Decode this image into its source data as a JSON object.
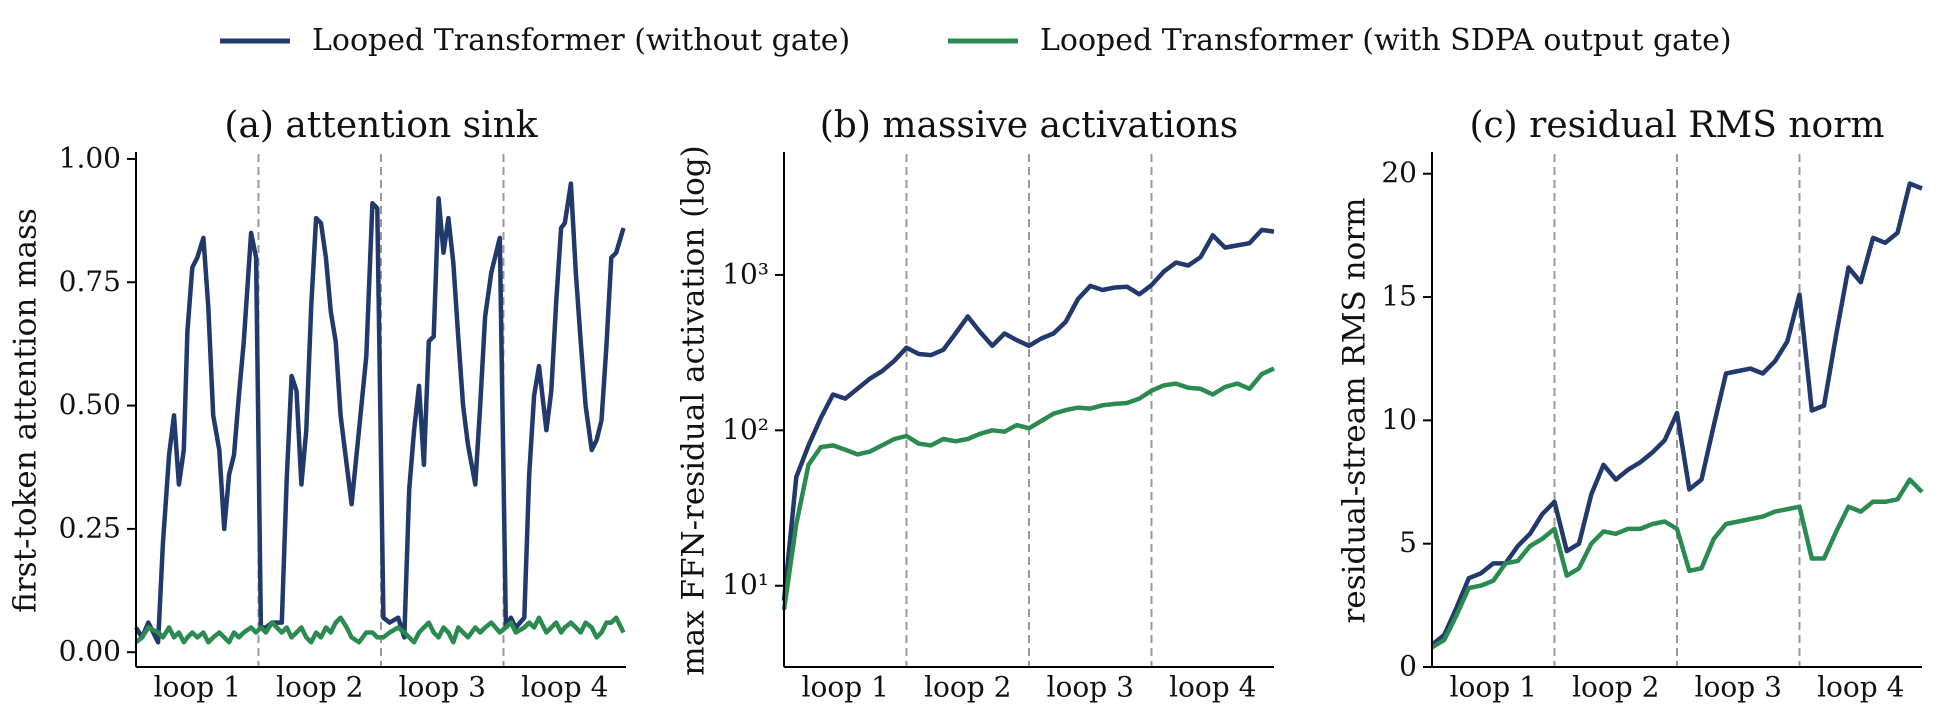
{
  "chart_data": [
    {
      "type": "line",
      "title": "(a) attention sink",
      "y_label": "first-token attention mass",
      "xlim": [
        0,
        4
      ],
      "xticks": [
        {
          "value": 0.5,
          "label": "loop 1"
        },
        {
          "value": 1.5,
          "label": "loop 2"
        },
        {
          "value": 2.5,
          "label": "loop 3"
        },
        {
          "value": 3.5,
          "label": "loop 4"
        }
      ],
      "loop_boundaries": [
        1,
        2,
        3
      ],
      "ylim": [
        -0.03,
        1.01
      ],
      "yticks": [
        {
          "value": 0,
          "label": "0.00"
        },
        {
          "value": 0.25,
          "label": "0.25"
        },
        {
          "value": 0.5,
          "label": "0.50"
        },
        {
          "value": 0.75,
          "label": "0.75"
        },
        {
          "value": 1,
          "label": "1.00"
        }
      ],
      "x": [
        0,
        0.05,
        0.1,
        0.18,
        0.22,
        0.27,
        0.31,
        0.35,
        0.39,
        0.42,
        0.46,
        0.5,
        0.55,
        0.59,
        0.63,
        0.68,
        0.72,
        0.76,
        0.8,
        0.84,
        0.88,
        0.94,
        0.98,
        1.02,
        1.06,
        1.11,
        1.19,
        1.23,
        1.27,
        1.31,
        1.35,
        1.39,
        1.43,
        1.47,
        1.51,
        1.55,
        1.59,
        1.63,
        1.67,
        1.72,
        1.76,
        1.82,
        1.88,
        1.93,
        1.97,
        2.02,
        2.07,
        2.14,
        2.19,
        2.23,
        2.27,
        2.31,
        2.35,
        2.39,
        2.43,
        2.47,
        2.51,
        2.55,
        2.59,
        2.63,
        2.67,
        2.71,
        2.77,
        2.81,
        2.85,
        2.9,
        2.97,
        3.02,
        3.06,
        3.1,
        3.17,
        3.21,
        3.25,
        3.29,
        3.35,
        3.39,
        3.43,
        3.47,
        3.5,
        3.55,
        3.59,
        3.63,
        3.67,
        3.72,
        3.76,
        3.8,
        3.84,
        3.88,
        3.92,
        3.98
      ],
      "series": [
        {
          "name": "Looped Transformer (without gate)",
          "color": "#22396b",
          "values": [
            0.05,
            0.03,
            0.06,
            0.02,
            0.22,
            0.4,
            0.48,
            0.34,
            0.41,
            0.65,
            0.78,
            0.8,
            0.84,
            0.7,
            0.48,
            0.41,
            0.25,
            0.36,
            0.4,
            0.52,
            0.63,
            0.85,
            0.8,
            0.05,
            0.05,
            0.06,
            0.06,
            0.35,
            0.56,
            0.53,
            0.34,
            0.45,
            0.7,
            0.88,
            0.87,
            0.8,
            0.69,
            0.63,
            0.48,
            0.38,
            0.3,
            0.45,
            0.6,
            0.91,
            0.9,
            0.07,
            0.06,
            0.07,
            0.03,
            0.33,
            0.45,
            0.54,
            0.38,
            0.63,
            0.64,
            0.92,
            0.81,
            0.88,
            0.79,
            0.64,
            0.5,
            0.42,
            0.34,
            0.5,
            0.68,
            0.77,
            0.84,
            0.05,
            0.07,
            0.05,
            0.07,
            0.36,
            0.52,
            0.58,
            0.45,
            0.53,
            0.71,
            0.86,
            0.87,
            0.95,
            0.77,
            0.63,
            0.5,
            0.41,
            0.43,
            0.47,
            0.62,
            0.8,
            0.81,
            0.86
          ]
        },
        {
          "name": "Looped Transformer (with SDPA output gate)",
          "color": "#2a8a50",
          "values": [
            0.02,
            0.03,
            0.05,
            0.04,
            0.03,
            0.05,
            0.03,
            0.04,
            0.02,
            0.03,
            0.04,
            0.03,
            0.04,
            0.02,
            0.03,
            0.04,
            0.03,
            0.02,
            0.04,
            0.03,
            0.04,
            0.05,
            0.04,
            0.05,
            0.04,
            0.06,
            0.04,
            0.05,
            0.03,
            0.04,
            0.05,
            0.03,
            0.02,
            0.04,
            0.03,
            0.05,
            0.04,
            0.06,
            0.07,
            0.05,
            0.03,
            0.02,
            0.04,
            0.04,
            0.03,
            0.03,
            0.04,
            0.05,
            0.04,
            0.03,
            0.02,
            0.04,
            0.05,
            0.06,
            0.04,
            0.03,
            0.05,
            0.04,
            0.02,
            0.05,
            0.04,
            0.03,
            0.05,
            0.04,
            0.05,
            0.06,
            0.04,
            0.05,
            0.06,
            0.04,
            0.05,
            0.06,
            0.05,
            0.07,
            0.04,
            0.05,
            0.06,
            0.04,
            0.05,
            0.06,
            0.05,
            0.04,
            0.06,
            0.05,
            0.03,
            0.04,
            0.06,
            0.06,
            0.07,
            0.04
          ]
        }
      ]
    },
    {
      "type": "line",
      "title": "(b) massive activations",
      "y_label": "max FFN-residual activation (log)",
      "log_y": true,
      "xlim": [
        0,
        4
      ],
      "xticks": [
        {
          "value": 0.5,
          "label": "loop 1"
        },
        {
          "value": 1.5,
          "label": "loop 2"
        },
        {
          "value": 2.5,
          "label": "loop 3"
        },
        {
          "value": 3.5,
          "label": "loop 4"
        }
      ],
      "loop_boundaries": [
        1,
        2,
        3
      ],
      "ylim": [
        3,
        6000
      ],
      "yticks": [
        {
          "value": 10,
          "label": "10¹"
        },
        {
          "value": 100,
          "label": "10²"
        },
        {
          "value": 1000,
          "label": "10³"
        }
      ],
      "x": [
        0,
        0.1,
        0.2,
        0.3,
        0.4,
        0.5,
        0.6,
        0.7,
        0.8,
        0.9,
        1,
        1.1,
        1.2,
        1.3,
        1.4,
        1.5,
        1.6,
        1.7,
        1.8,
        1.9,
        2,
        2.1,
        2.2,
        2.3,
        2.4,
        2.5,
        2.6,
        2.7,
        2.8,
        2.9,
        3,
        3.1,
        3.2,
        3.3,
        3.4,
        3.5,
        3.6,
        3.7,
        3.8,
        3.9,
        4
      ],
      "series": [
        {
          "color": "#22396b",
          "values": [
            8,
            50,
            80,
            120,
            170,
            160,
            185,
            215,
            240,
            280,
            340,
            310,
            305,
            330,
            420,
            540,
            430,
            350,
            420,
            380,
            350,
            390,
            420,
            500,
            700,
            850,
            800,
            830,
            840,
            750,
            860,
            1050,
            1200,
            1150,
            1300,
            1800,
            1500,
            1550,
            1600,
            1950,
            1900
          ]
        },
        {
          "color": "#2a8a50",
          "values": [
            7,
            25,
            60,
            78,
            80,
            75,
            70,
            73,
            80,
            88,
            92,
            82,
            80,
            88,
            85,
            88,
            95,
            100,
            98,
            108,
            103,
            115,
            128,
            135,
            140,
            138,
            145,
            148,
            150,
            160,
            180,
            195,
            200,
            188,
            185,
            170,
            190,
            200,
            185,
            230,
            250
          ]
        }
      ]
    },
    {
      "type": "line",
      "title": "(c) residual RMS norm",
      "y_label": "residual-stream RMS norm",
      "xlim": [
        0,
        4
      ],
      "xticks": [
        {
          "value": 0.5,
          "label": "loop 1"
        },
        {
          "value": 1.5,
          "label": "loop 2"
        },
        {
          "value": 2.5,
          "label": "loop 3"
        },
        {
          "value": 3.5,
          "label": "loop 4"
        }
      ],
      "loop_boundaries": [
        1,
        2,
        3
      ],
      "ylim": [
        0,
        20.8
      ],
      "yticks": [
        0,
        5,
        10,
        15,
        20
      ],
      "x": [
        0,
        0.1,
        0.2,
        0.3,
        0.4,
        0.5,
        0.6,
        0.7,
        0.8,
        0.9,
        1,
        1.1,
        1.2,
        1.3,
        1.4,
        1.5,
        1.6,
        1.7,
        1.8,
        1.9,
        2,
        2.1,
        2.2,
        2.3,
        2.4,
        2.5,
        2.6,
        2.7,
        2.8,
        2.9,
        3,
        3.1,
        3.2,
        3.3,
        3.4,
        3.5,
        3.6,
        3.7,
        3.8,
        3.9,
        4
      ],
      "series": [
        {
          "color": "#22396b",
          "values": [
            0.9,
            1.3,
            2.4,
            3.6,
            3.8,
            4.2,
            4.2,
            4.9,
            5.4,
            6.2,
            6.7,
            4.7,
            5.0,
            7.0,
            8.2,
            7.6,
            8.0,
            8.3,
            8.7,
            9.2,
            10.3,
            7.2,
            7.6,
            9.8,
            11.9,
            12.0,
            12.1,
            11.9,
            12.4,
            13.2,
            15.1,
            10.4,
            10.6,
            13.5,
            16.2,
            15.6,
            17.4,
            17.2,
            17.6,
            19.6,
            19.4
          ]
        },
        {
          "color": "#2a8a50",
          "values": [
            0.8,
            1.1,
            2.1,
            3.2,
            3.3,
            3.5,
            4.2,
            4.3,
            4.9,
            5.2,
            5.6,
            3.7,
            4.0,
            5.0,
            5.5,
            5.4,
            5.6,
            5.6,
            5.8,
            5.9,
            5.6,
            3.9,
            4.0,
            5.2,
            5.8,
            5.9,
            6.0,
            6.1,
            6.3,
            6.4,
            6.5,
            4.4,
            4.4,
            5.5,
            6.5,
            6.3,
            6.7,
            6.7,
            6.8,
            7.6,
            7.1
          ]
        }
      ]
    }
  ]
}
